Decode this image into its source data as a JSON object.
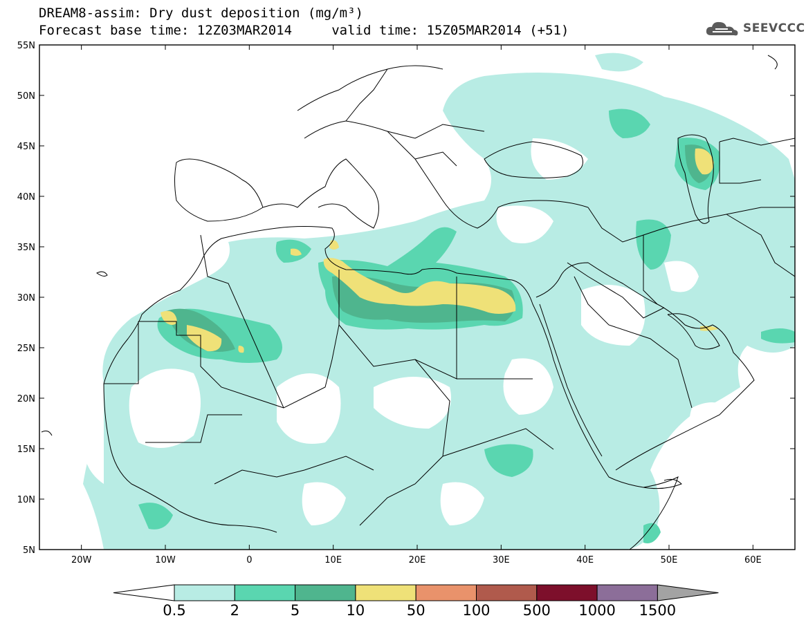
{
  "title": {
    "line1": "DREAM8-assim: Dry dust deposition (mg/m³)",
    "line2": "Forecast base time: 12Z03MAR2014     valid time: 15Z05MAR2014 (+51)"
  },
  "logo": {
    "text": "SEEVCCC",
    "icon": "cloud-logo-icon"
  },
  "map": {
    "lon_range": [
      -25,
      65
    ],
    "lat_range": [
      5,
      55
    ],
    "lon_ticks": [
      "20W",
      "10W",
      "0",
      "10E",
      "20E",
      "30E",
      "40E",
      "50E",
      "60E"
    ],
    "lat_ticks": [
      "5N",
      "10N",
      "15N",
      "20N",
      "25N",
      "30N",
      "35N",
      "40N",
      "45N",
      "50N",
      "55N"
    ]
  },
  "legend": {
    "labels": [
      "0.5",
      "2",
      "5",
      "10",
      "50",
      "100",
      "500",
      "1000",
      "1500"
    ],
    "colors": [
      "#b8ece4",
      "#5ad6b0",
      "#4fb58e",
      "#efe178",
      "#e9926b",
      "#b05a4c",
      "#7d0f2b",
      "#8c6e99",
      "#a3a3a3"
    ],
    "under_color": "#ffffff",
    "over_color": "#a3a3a3"
  }
}
